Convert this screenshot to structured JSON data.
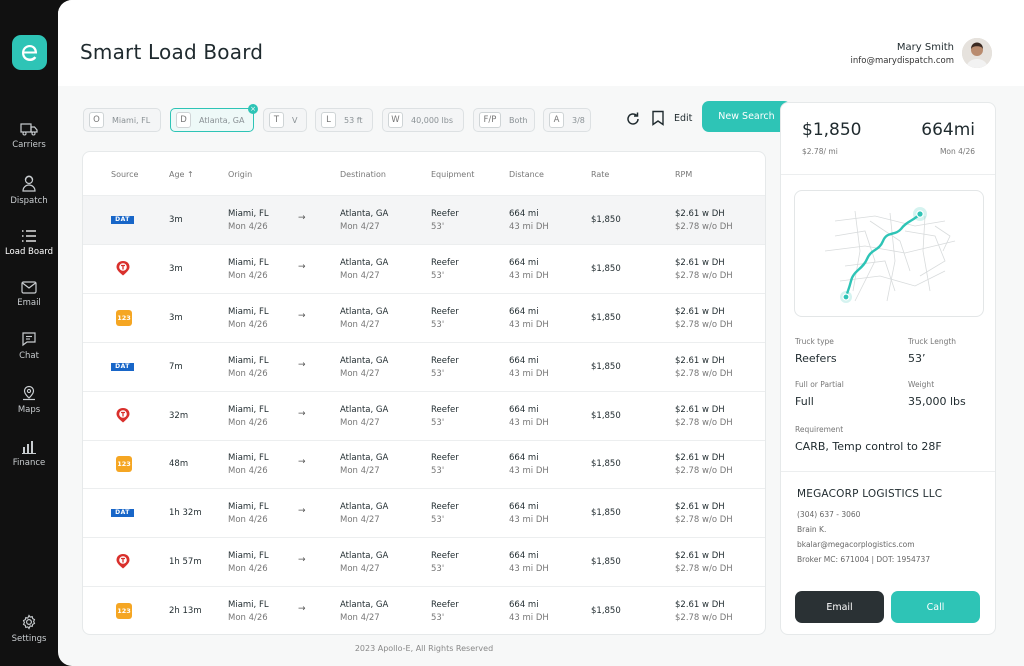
{
  "app": {
    "logo_letter": "e",
    "accent": "#2ec4b6"
  },
  "sidebar": {
    "items": [
      {
        "label": "Carriers",
        "icon": "truck-icon"
      },
      {
        "label": "Dispatch",
        "icon": "dispatcher-icon"
      },
      {
        "label": "Load Board",
        "icon": "list-icon"
      },
      {
        "label": "Email",
        "icon": "mail-icon"
      },
      {
        "label": "Chat",
        "icon": "chat-icon"
      },
      {
        "label": "Maps",
        "icon": "map-pin-icon"
      },
      {
        "label": "Finance",
        "icon": "bar-chart-icon"
      },
      {
        "label": "Settings",
        "icon": "gear-icon"
      }
    ],
    "active": "Load Board"
  },
  "header": {
    "title": "Smart Load Board",
    "user_name": "Mary Smith",
    "user_email": "info@marydispatch.com"
  },
  "filters": [
    {
      "key": "O",
      "value": "Miami, FL"
    },
    {
      "key": "D",
      "value": "Atlanta, GA",
      "active": true,
      "clear": "×"
    },
    {
      "key": "T",
      "value": "V"
    },
    {
      "key": "L",
      "value": "53 ft"
    },
    {
      "key": "W",
      "value": "40,000 lbs"
    },
    {
      "key": "F/P",
      "value": "Both"
    },
    {
      "key": "A",
      "value": "3/8"
    }
  ],
  "toolbar": {
    "edit_label": "Edit",
    "new_search_label": "New Search"
  },
  "table": {
    "columns": [
      "Source",
      "Age",
      "Origin",
      "Destination",
      "Equipment",
      "Distance",
      "Rate",
      "RPM"
    ],
    "sort_indicator": "↑",
    "rows": [
      {
        "source": "DAT",
        "age": "3m",
        "origin": "Miami, FL",
        "origin_date": "Mon 4/26",
        "dest": "Atlanta, GA",
        "dest_date": "Mon 4/27",
        "equip": "Reefer",
        "equip_len": "53'",
        "dist": "664 mi",
        "dh": "43 mi DH",
        "rate": "$1,850",
        "rpm": "$2.61 w DH",
        "rpm2": "$2.78 w/o DH"
      },
      {
        "source": "TQ",
        "age": "3m",
        "origin": "Miami, FL",
        "origin_date": "Mon 4/26",
        "dest": "Atlanta, GA",
        "dest_date": "Mon 4/27",
        "equip": "Reefer",
        "equip_len": "53'",
        "dist": "664 mi",
        "dh": "43 mi DH",
        "rate": "$1,850",
        "rpm": "$2.61 w DH",
        "rpm2": "$2.78 w/o DH"
      },
      {
        "source": "123",
        "age": "3m",
        "origin": "Miami, FL",
        "origin_date": "Mon 4/26",
        "dest": "Atlanta, GA",
        "dest_date": "Mon 4/27",
        "equip": "Reefer",
        "equip_len": "53'",
        "dist": "664 mi",
        "dh": "43 mi DH",
        "rate": "$1,850",
        "rpm": "$2.61 w DH",
        "rpm2": "$2.78 w/o DH"
      },
      {
        "source": "DAT",
        "age": "7m",
        "origin": "Miami, FL",
        "origin_date": "Mon 4/26",
        "dest": "Atlanta, GA",
        "dest_date": "Mon 4/27",
        "equip": "Reefer",
        "equip_len": "53'",
        "dist": "664 mi",
        "dh": "43 mi DH",
        "rate": "$1,850",
        "rpm": "$2.61 w DH",
        "rpm2": "$2.78 w/o DH"
      },
      {
        "source": "TQ",
        "age": "32m",
        "origin": "Miami, FL",
        "origin_date": "Mon 4/26",
        "dest": "Atlanta, GA",
        "dest_date": "Mon 4/27",
        "equip": "Reefer",
        "equip_len": "53'",
        "dist": "664 mi",
        "dh": "43 mi DH",
        "rate": "$1,850",
        "rpm": "$2.61 w DH",
        "rpm2": "$2.78 w/o DH"
      },
      {
        "source": "123",
        "age": "48m",
        "origin": "Miami, FL",
        "origin_date": "Mon 4/26",
        "dest": "Atlanta, GA",
        "dest_date": "Mon 4/27",
        "equip": "Reefer",
        "equip_len": "53'",
        "dist": "664 mi",
        "dh": "43 mi DH",
        "rate": "$1,850",
        "rpm": "$2.61 w DH",
        "rpm2": "$2.78 w/o DH"
      },
      {
        "source": "DAT",
        "age": "1h 32m",
        "origin": "Miami, FL",
        "origin_date": "Mon 4/26",
        "dest": "Atlanta, GA",
        "dest_date": "Mon 4/27",
        "equip": "Reefer",
        "equip_len": "53'",
        "dist": "664 mi",
        "dh": "43 mi DH",
        "rate": "$1,850",
        "rpm": "$2.61 w DH",
        "rpm2": "$2.78 w/o DH"
      },
      {
        "source": "TQ",
        "age": "1h 57m",
        "origin": "Miami, FL",
        "origin_date": "Mon 4/26",
        "dest": "Atlanta, GA",
        "dest_date": "Mon 4/27",
        "equip": "Reefer",
        "equip_len": "53'",
        "dist": "664 mi",
        "dh": "43 mi DH",
        "rate": "$1,850",
        "rpm": "$2.61 w DH",
        "rpm2": "$2.78 w/o DH"
      },
      {
        "source": "123",
        "age": "2h 13m",
        "origin": "Miami, FL",
        "origin_date": "Mon 4/26",
        "dest": "Atlanta, GA",
        "dest_date": "Mon 4/27",
        "equip": "Reefer",
        "equip_len": "53'",
        "dist": "664 mi",
        "dh": "43 mi DH",
        "rate": "$1,850",
        "rpm": "$2.61 w DH",
        "rpm2": "$2.78 w/o DH"
      }
    ]
  },
  "footer": "2023 Apollo-E, All Rights Reserved",
  "detail": {
    "price": "$1,850",
    "price_sub": "$2.78/ mi",
    "distance": "664mi",
    "date": "Mon 4/26",
    "truck_type_label": "Truck type",
    "truck_type": "Reefers",
    "truck_length_label": "Truck Length",
    "truck_length": "53’",
    "full_partial_label": "Full or Partial",
    "full_partial": "Full",
    "weight_label": "Weight",
    "weight": "35,000 lbs",
    "requirement_label": "Requirement",
    "requirement": "CARB, Temp control to 28F",
    "broker": {
      "name": "MEGACORP LOGISTICS LLC",
      "phone": "(304) 637 - 3060",
      "contact": "Brain K.",
      "email": "bkalar@megacorplogistics.com",
      "ids": "Broker MC: 671004 | DOT: 1954737"
    },
    "email_button": "Email",
    "call_button": "Call"
  },
  "source_labels": {
    "dat": "DAT",
    "s123": "123"
  }
}
